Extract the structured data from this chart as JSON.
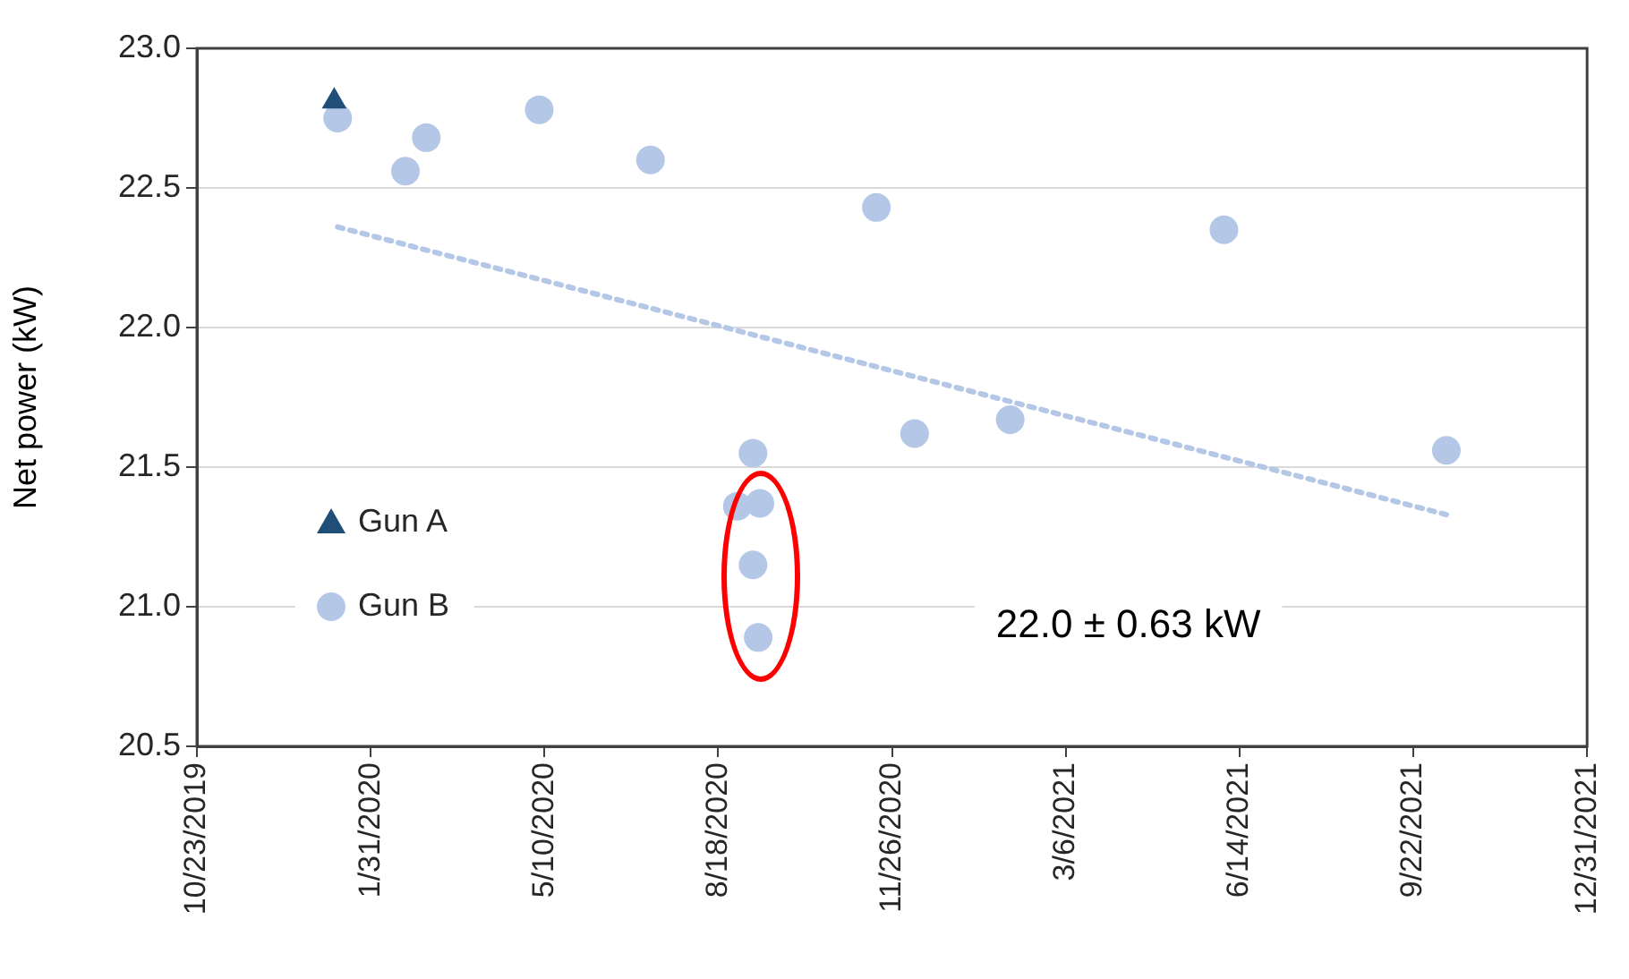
{
  "chart_data": {
    "type": "scatter",
    "ylabel": "Net power (kW)",
    "series": [
      {
        "name": "Gun A",
        "marker": "triangle",
        "color": "#1f4e79",
        "x": [
          "2020-01-10"
        ],
        "values": [
          22.81
        ]
      },
      {
        "name": "Gun B",
        "marker": "circle",
        "color": "#b4c7e7",
        "x": [
          "2020-01-12",
          "2020-02-20",
          "2020-03-03",
          "2020-05-07",
          "2020-07-10",
          "2020-08-29",
          "2020-09-07",
          "2020-09-07",
          "2020-09-10",
          "2020-09-11",
          "2020-11-17",
          "2020-12-09",
          "2021-02-02",
          "2021-06-05",
          "2021-10-11"
        ],
        "values": [
          22.75,
          22.56,
          22.68,
          22.78,
          22.6,
          21.36,
          21.55,
          21.15,
          20.89,
          21.37,
          22.43,
          21.62,
          21.67,
          22.35,
          21.56
        ]
      },
      {
        "type": "line",
        "line_style": "dotted",
        "color": "#b4c7e7",
        "x": [
          "2020-01-12",
          "2021-10-11"
        ],
        "values": [
          22.36,
          21.33
        ]
      }
    ],
    "xlim": [
      "2019-10-23",
      "2021-12-31"
    ],
    "xticks": [
      {
        "value": "2019-10-23",
        "label": "10/23/2019"
      },
      {
        "value": "2020-01-31",
        "label": "1/31/2020"
      },
      {
        "value": "2020-05-10",
        "label": "5/10/2020"
      },
      {
        "value": "2020-08-18",
        "label": "8/18/2020"
      },
      {
        "value": "2020-11-26",
        "label": "11/26/2020"
      },
      {
        "value": "2021-03-06",
        "label": "3/6/2021"
      },
      {
        "value": "2021-06-14",
        "label": "6/14/2021"
      },
      {
        "value": "2021-09-22",
        "label": "9/22/2021"
      },
      {
        "value": "2021-12-31",
        "label": "12/31/2021"
      }
    ],
    "ylim": [
      20.5,
      23.0
    ],
    "yticks": [
      {
        "value": 20.5,
        "label": "20.5"
      },
      {
        "value": 21,
        "label": "21.0"
      },
      {
        "value": 21.5,
        "label": "21.5"
      },
      {
        "value": 22,
        "label": "22.0"
      },
      {
        "value": 22.5,
        "label": "22.5"
      },
      {
        "value": 23,
        "label": "23.0"
      }
    ],
    "grid": "y",
    "legend": "bottom left",
    "annotations": [
      "22.0 ± 0.63 kW"
    ]
  }
}
